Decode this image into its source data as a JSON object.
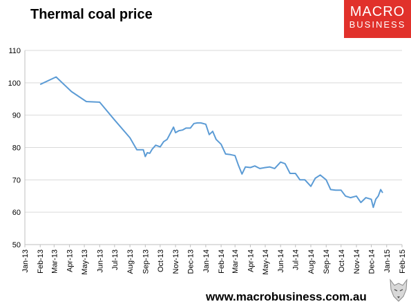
{
  "header": {
    "title": "Thermal coal price"
  },
  "brand": {
    "line1": "MACRO",
    "line2": "BUSINESS",
    "color": "#e1312b",
    "icon": "wolf-icon"
  },
  "footer": {
    "url": "www.macrobusiness.com.au"
  },
  "chart_data": {
    "type": "line",
    "title": "Thermal coal price",
    "xlabel": "",
    "ylabel": "",
    "ylim": [
      50,
      110
    ],
    "yticks": [
      50,
      60,
      70,
      80,
      90,
      100,
      110
    ],
    "xlim": [
      "2013-01",
      "2015-02"
    ],
    "xticks": [
      "Jan-13",
      "Feb-13",
      "Mar-13",
      "Apr-13",
      "May-13",
      "Jun-13",
      "Jul-13",
      "Aug-13",
      "Sep-13",
      "Oct-13",
      "Nov-13",
      "Dec-13",
      "Jan-14",
      "Feb-14",
      "Mar-14",
      "Apr-14",
      "May-14",
      "Jun-14",
      "Jul-14",
      "Aug-14",
      "Sep-14",
      "Oct-14",
      "Nov-14",
      "Dec-14",
      "Jan-15",
      "Feb-15"
    ],
    "grid": true,
    "line_color": "#5b9bd5",
    "series": [
      {
        "x": [
          "2013-02-01",
          "2013-03-05",
          "2013-04-05",
          "2013-05-05",
          "2013-06-01",
          "2013-07-01",
          "2013-08-01",
          "2013-08-15",
          "2013-08-28",
          "2013-09-01",
          "2013-09-05",
          "2013-09-10",
          "2013-09-15",
          "2013-09-22",
          "2013-10-01",
          "2013-10-08",
          "2013-10-15",
          "2013-10-22",
          "2013-10-28",
          "2013-11-01",
          "2013-11-08",
          "2013-11-15",
          "2013-11-22",
          "2013-12-01",
          "2013-12-08",
          "2013-12-15",
          "2013-12-22",
          "2014-01-01",
          "2014-01-08",
          "2014-01-15",
          "2014-01-22",
          "2014-02-01",
          "2014-02-10",
          "2014-02-20",
          "2014-03-01",
          "2014-03-08",
          "2014-03-15",
          "2014-03-22",
          "2014-04-01",
          "2014-04-10",
          "2014-04-20",
          "2014-05-01",
          "2014-05-10",
          "2014-05-20",
          "2014-06-01",
          "2014-06-10",
          "2014-06-20",
          "2014-07-01",
          "2014-07-10",
          "2014-07-20",
          "2014-08-01",
          "2014-08-10",
          "2014-08-20",
          "2014-09-01",
          "2014-09-10",
          "2014-09-20",
          "2014-10-01",
          "2014-10-10",
          "2014-10-20",
          "2014-11-01",
          "2014-11-10",
          "2014-11-20",
          "2014-12-01",
          "2014-12-05",
          "2014-12-10",
          "2014-12-15",
          "2014-12-20",
          "2014-12-24"
        ],
        "y": [
          99.5,
          101.8,
          97.3,
          94.2,
          94,
          88.5,
          83,
          79.3,
          79.3,
          77.2,
          78.4,
          78.2,
          79.5,
          80.7,
          80.2,
          81.8,
          82.5,
          84.5,
          86.3,
          84.6,
          85.2,
          85.4,
          86.0,
          86.0,
          87.4,
          87.6,
          87.6,
          87.2,
          84.0,
          85.0,
          82.5,
          81.0,
          78.0,
          77.8,
          77.5,
          74.5,
          71.8,
          74.0,
          73.8,
          74.3,
          73.5,
          73.8,
          74.0,
          73.5,
          75.5,
          75.0,
          72.0,
          72.0,
          70.0,
          70.0,
          68.0,
          70.5,
          71.5,
          70.0,
          67.0,
          66.8,
          66.8,
          65.0,
          64.5,
          65.0,
          63.0,
          64.5,
          64.0,
          61.5,
          64.0,
          65.0,
          67.0,
          66.0
        ]
      }
    ]
  }
}
